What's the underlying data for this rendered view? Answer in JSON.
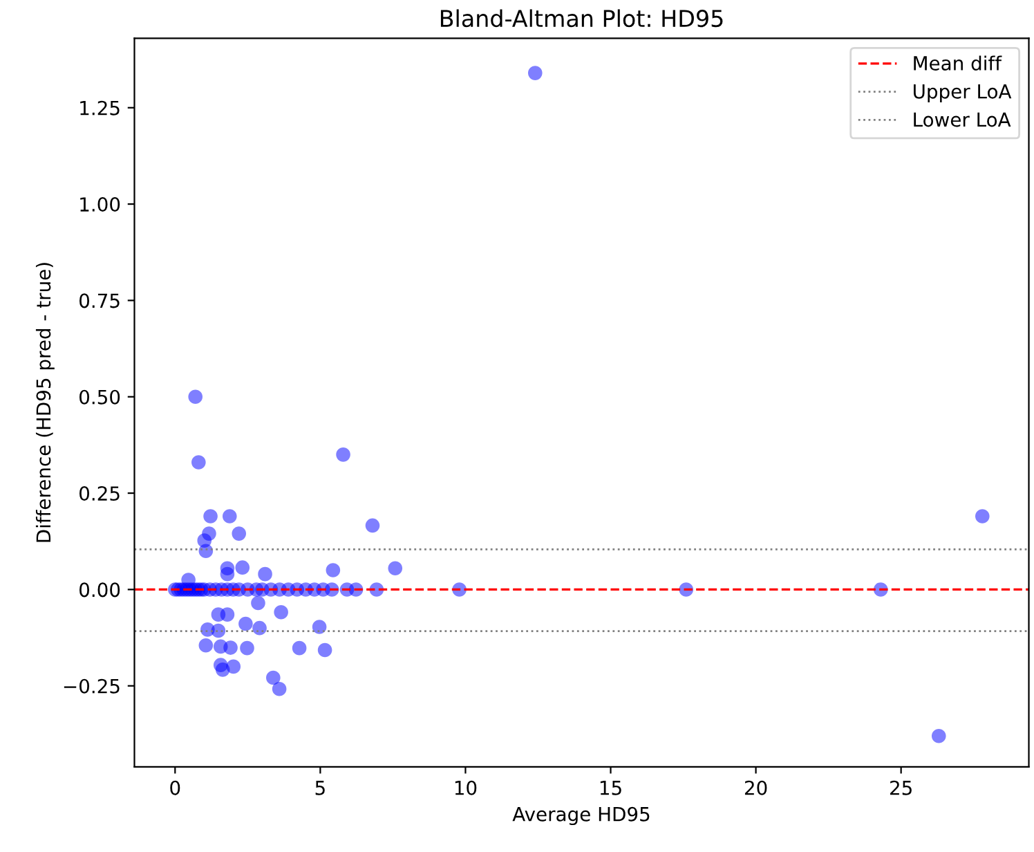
{
  "chart_data": {
    "type": "scatter",
    "title": "Bland-Altman Plot: HD95",
    "xlabel": "Average HD95",
    "ylabel": "Difference (HD95 pred - true)",
    "xlim": [
      -1.4,
      29.4
    ],
    "ylim": [
      -0.46,
      1.43
    ],
    "xticks": [
      0,
      5,
      10,
      15,
      20,
      25
    ],
    "yticks": [
      {
        "value": -0.25,
        "label": "−0.25"
      },
      "0.00",
      0.25,
      "0.50",
      0.75,
      "1.00",
      1.25
    ],
    "grid": false,
    "legend": "top right",
    "marker": "circle",
    "series": [
      {
        "color": "#0000ff",
        "x": [
          12.4,
          27.8,
          26.3,
          0.7,
          0.81,
          5.79,
          1.22,
          1.88,
          1.17,
          1.01,
          2.2,
          1.06,
          6.8,
          7.58,
          5.44,
          1.8,
          1.8,
          2.32,
          3.1,
          0.46,
          0,
          0.1,
          0.2,
          0.3,
          0.4,
          0.5,
          0.6,
          0.7,
          0.8,
          0.9,
          1.0,
          1.2,
          1.4,
          1.6,
          1.8,
          2.0,
          2.2,
          2.5,
          2.8,
          3.0,
          3.3,
          3.6,
          3.9,
          4.2,
          4.5,
          4.8,
          5.1,
          5.4,
          5.92,
          6.23,
          6.94,
          9.79,
          17.6,
          24.3,
          2.86,
          3.65,
          1.49,
          1.8,
          1.12,
          1.49,
          2.43,
          2.91,
          4.97,
          1.06,
          1.57,
          1.91,
          2.48,
          4.28,
          5.16,
          1.57,
          1.64,
          2.01,
          3.38,
          3.59
        ],
        "values": [
          1.34,
          0.19,
          -0.38,
          0.5,
          0.33,
          0.35,
          0.19,
          0.19,
          0.145,
          0.127,
          0.145,
          0.1,
          0.166,
          0.055,
          0.05,
          0.055,
          0.04,
          0.057,
          0.04,
          0.025,
          0,
          0,
          0,
          0,
          0,
          0,
          0,
          0,
          0,
          0,
          0,
          0,
          0,
          0,
          0,
          0,
          0,
          0,
          0,
          0,
          0,
          0,
          0,
          0,
          0,
          0,
          0,
          0,
          0,
          0,
          0,
          0,
          0,
          0,
          -0.035,
          -0.059,
          -0.065,
          -0.065,
          -0.104,
          -0.107,
          -0.089,
          -0.1,
          -0.097,
          -0.145,
          -0.148,
          -0.151,
          -0.152,
          -0.152,
          -0.157,
          -0.196,
          -0.208,
          -0.2,
          -0.229,
          -0.258
        ]
      }
    ],
    "ref_lines": [
      {
        "axis": "y",
        "value": 0,
        "label": "Mean diff",
        "color": "#ff0000",
        "line_style": "dashed"
      },
      {
        "axis": "y",
        "value": 0.104,
        "label": "Upper LoA",
        "color": "#808080",
        "line_style": "dotted"
      },
      {
        "axis": "y",
        "value": -0.108,
        "label": "Lower LoA",
        "color": "#808080",
        "line_style": "dotted"
      }
    ]
  }
}
